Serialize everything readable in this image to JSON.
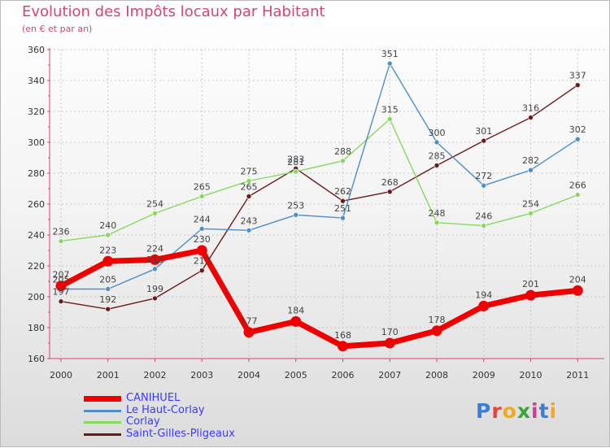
{
  "header": {
    "title": "Evolution des Impôts locaux par Habitant",
    "subtitle": "(en € et par an)"
  },
  "logo": {
    "text": "Proxiti",
    "colors": [
      "#3a7fd5",
      "#e8433a",
      "#f7a81c",
      "#3aa635",
      "#d53a8f",
      "#3a7fd5",
      "#f7a81c"
    ]
  },
  "chart_data": {
    "type": "line",
    "title": "Evolution des Impôts locaux par Habitant",
    "subtitle": "(en € et par an)",
    "xlabel": "",
    "ylabel": "",
    "categories": [
      "2000",
      "2001",
      "2002",
      "2003",
      "2004",
      "2005",
      "2006",
      "2007",
      "2008",
      "2009",
      "2010",
      "2011"
    ],
    "yticks": [
      "160",
      "180",
      "200",
      "220",
      "240",
      "260",
      "280",
      "300",
      "320",
      "340",
      "360"
    ],
    "ylim": [
      160,
      360
    ],
    "grid": true,
    "legend_position": "bottom-left",
    "series": [
      {
        "name": "Saint-Gilles-Pligeaux",
        "color": "#6b1a1a",
        "emphasis": false,
        "values": [
          197,
          192,
          199,
          217,
          265,
          283,
          262,
          268,
          285,
          301,
          316,
          337
        ]
      },
      {
        "name": "Corlay",
        "color": "#88d860",
        "emphasis": false,
        "values": [
          236,
          240,
          254,
          265,
          275,
          281,
          288,
          315,
          248,
          246,
          254,
          266
        ]
      },
      {
        "name": "Le Haut-Corlay",
        "color": "#4d8fc7",
        "emphasis": false,
        "values": [
          205,
          205,
          218,
          244,
          243,
          253,
          251,
          351,
          300,
          272,
          282,
          302
        ]
      },
      {
        "name": "CANIHUEL",
        "color": "#ee0000",
        "emphasis": true,
        "values": [
          207,
          223,
          224,
          230,
          177,
          184,
          168,
          170,
          178,
          194,
          201,
          204
        ]
      }
    ]
  },
  "legend": [
    {
      "label": "CANIHUEL",
      "color": "#ee0000"
    },
    {
      "label": "Le Haut-Corlay",
      "color": "#4d8fc7"
    },
    {
      "label": "Corlay",
      "color": "#88d860"
    },
    {
      "label": "Saint-Gilles-Pligeaux",
      "color": "#6b1a1a"
    }
  ]
}
